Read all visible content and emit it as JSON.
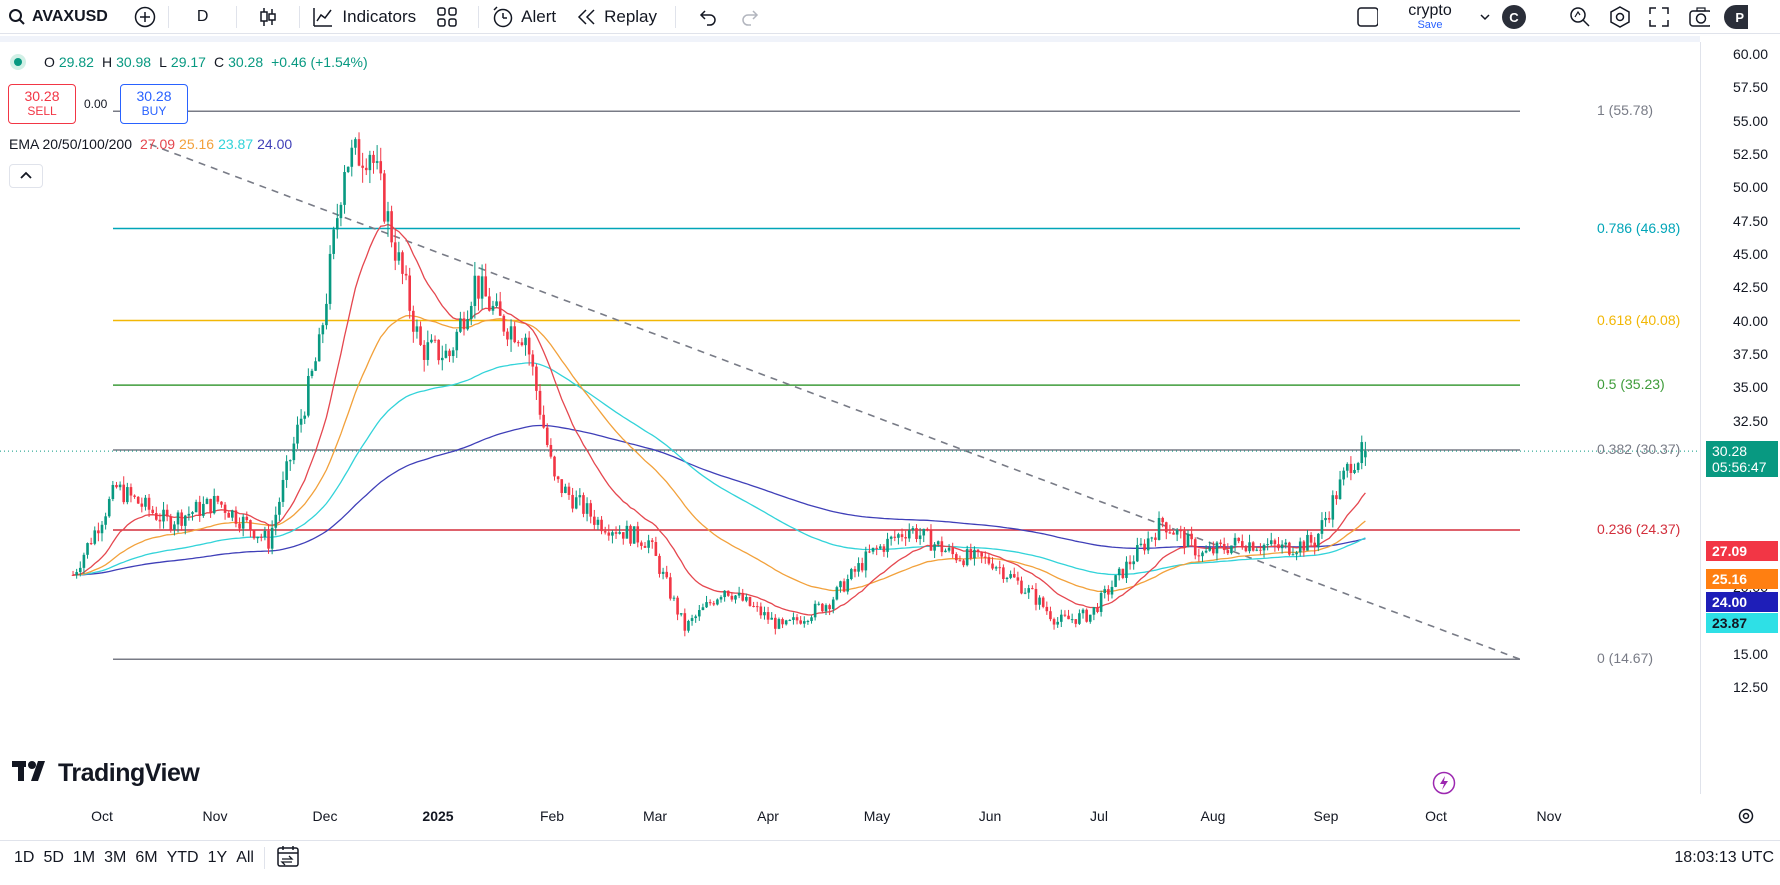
{
  "toolbar": {
    "symbol": "AVAXUSD",
    "interval": "D",
    "indicators_label": "Indicators",
    "alert_label": "Alert",
    "replay_label": "Replay",
    "layout_name": "crypto",
    "layout_status": "Save",
    "avatar_letter": "C",
    "profile_letter": "P"
  },
  "legend": {
    "open_label": "O",
    "open": "29.82",
    "high_label": "H",
    "high": "30.98",
    "low_label": "L",
    "low": "29.17",
    "close_label": "C",
    "close": "30.28",
    "change": "+0.46 (+1.54%)",
    "sell_price": "30.28",
    "sell_label": "SELL",
    "spread": "0.00",
    "buy_price": "30.28",
    "buy_label": "BUY"
  },
  "ema": {
    "label": "EMA 20/50/100/200",
    "v20": "27.09",
    "v50": "25.16",
    "v100": "23.87",
    "v200": "24.00",
    "c20": "#e5474f",
    "c50": "#f2a13b",
    "c100": "#32d3d9",
    "c200": "#3f3fb8"
  },
  "price_axis": [
    "60.00",
    "57.50",
    "55.00",
    "52.50",
    "50.00",
    "47.50",
    "45.00",
    "42.50",
    "40.00",
    "37.50",
    "35.00",
    "32.50",
    "20.00",
    "17.50",
    "15.00",
    "12.50"
  ],
  "price_tags": {
    "last": "30.28",
    "countdown": "05:56:47",
    "ema20": "27.09",
    "ema50": "25.16",
    "ema200": "24.00",
    "ema100": "23.87"
  },
  "fib": [
    {
      "label": "1 (55.78)",
      "price": 55.78,
      "color": "#787b86"
    },
    {
      "label": "0.786 (46.98)",
      "price": 46.98,
      "color": "#00a5b8"
    },
    {
      "label": "0.618 (40.08)",
      "price": 40.08,
      "color": "#f2b705"
    },
    {
      "label": "0.5 (35.23)",
      "price": 35.23,
      "color": "#3e9c3a"
    },
    {
      "label": "0.382 (30.37)",
      "price": 30.37,
      "color": "#787b86"
    },
    {
      "label": "0.236 (24.37)",
      "price": 24.37,
      "color": "#d32f3c"
    },
    {
      "label": "0 (14.67)",
      "price": 14.67,
      "color": "#787b86"
    }
  ],
  "months": [
    "Oct",
    "Nov",
    "Dec",
    "2025",
    "Feb",
    "Mar",
    "Apr",
    "May",
    "Jun",
    "Jul",
    "Aug",
    "Sep",
    "Oct",
    "Nov"
  ],
  "brand": "TradingView",
  "ranges": [
    "1D",
    "5D",
    "1M",
    "3M",
    "6M",
    "YTD",
    "1Y",
    "All"
  ],
  "clock": "18:03:13 UTC",
  "chart_data": {
    "type": "candlestick",
    "symbol": "AVAXUSD",
    "interval": "D",
    "ylim": [
      12.5,
      60
    ],
    "x": [
      "2024-09-23",
      "2024-10-05",
      "2024-10-19",
      "2024-11-02",
      "2024-11-16",
      "2024-11-30",
      "2024-12-07",
      "2024-12-14",
      "2024-12-28",
      "2025-01-05",
      "2025-01-12",
      "2025-01-19",
      "2025-01-26",
      "2025-02-03",
      "2025-02-15",
      "2025-03-01",
      "2025-03-11",
      "2025-03-22",
      "2025-04-07",
      "2025-04-20",
      "2025-05-01",
      "2025-05-12",
      "2025-05-24",
      "2025-06-04",
      "2025-06-15",
      "2025-06-22",
      "2025-07-01",
      "2025-07-12",
      "2025-07-21",
      "2025-08-01",
      "2025-08-12",
      "2025-08-23",
      "2025-09-01",
      "2025-09-11",
      "2025-09-15"
    ],
    "close": [
      21.0,
      27.5,
      25.0,
      26.5,
      23.5,
      38.0,
      52.0,
      53.0,
      38.0,
      37.5,
      43.0,
      40.0,
      39.0,
      28.0,
      25.0,
      23.5,
      17.0,
      20.0,
      17.0,
      19.0,
      22.5,
      24.5,
      22.5,
      22.0,
      19.5,
      17.5,
      18.0,
      22.0,
      25.0,
      22.5,
      23.5,
      23.0,
      23.5,
      29.5,
      30.28
    ],
    "series": [
      {
        "name": "EMA 20",
        "last": 27.09
      },
      {
        "name": "EMA 50",
        "last": 25.16
      },
      {
        "name": "EMA 100",
        "last": 23.87
      },
      {
        "name": "EMA 200",
        "last": 24.0
      }
    ]
  }
}
